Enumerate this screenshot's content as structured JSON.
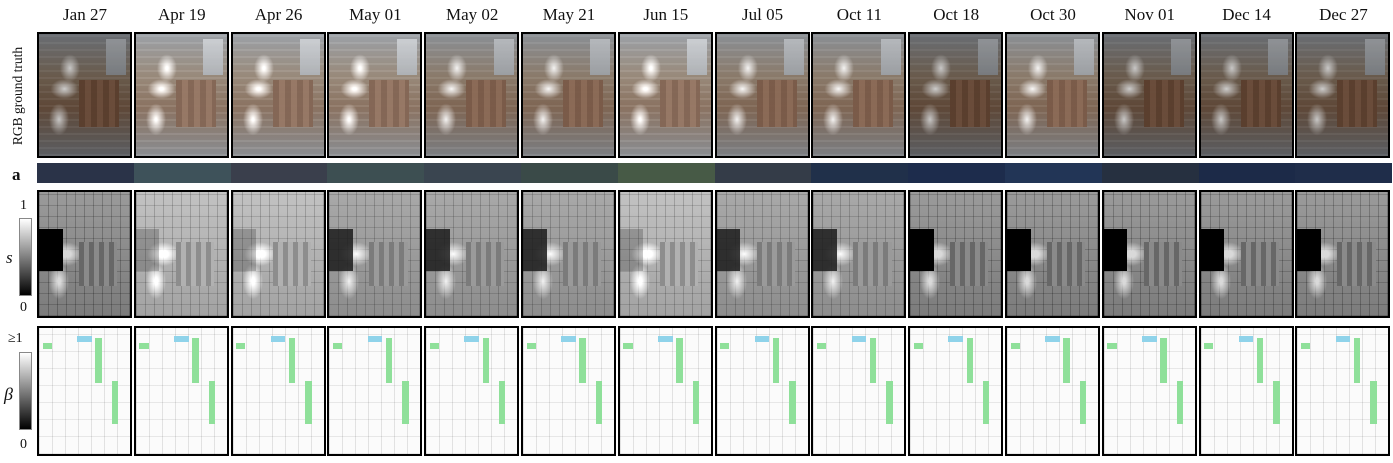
{
  "dates": [
    "Jan  27",
    "Apr  19",
    "Apr  26",
    "May  01",
    "May  02",
    "May  21",
    "Jun  15",
    "Jul  05",
    "Oct  11",
    "Oct  18",
    "Oct  30",
    "Nov  01",
    "Dec  14",
    "Dec  27"
  ],
  "rows": {
    "rgb_label": "RGB ground truth",
    "a_label": "a",
    "s_label": "s",
    "beta_label": "β"
  },
  "s_scale": {
    "top": "1",
    "bottom": "0"
  },
  "beta_scale": {
    "top": "≥1",
    "bottom": "0"
  },
  "a_colors": [
    "#2a3348",
    "#3e525a",
    "#3a3f4c",
    "#3d4f52",
    "#3a4550",
    "#3a4a48",
    "#475a46",
    "#343c48",
    "#20304a",
    "#1d2c4c",
    "#223556",
    "#263040",
    "#1c2a48",
    "#1f2d4a"
  ],
  "rgb_tone": [
    "dark",
    "bright",
    "bright",
    "bright",
    "normal",
    "normal",
    "bright",
    "normal",
    "normal",
    "dark",
    "normal",
    "dark",
    "dark",
    "dark"
  ],
  "s_tone": [
    "dark",
    "light",
    "light",
    "normal",
    "normal",
    "normal",
    "light",
    "normal",
    "normal",
    "dark",
    "dark",
    "dark",
    "dark",
    "dark"
  ]
}
